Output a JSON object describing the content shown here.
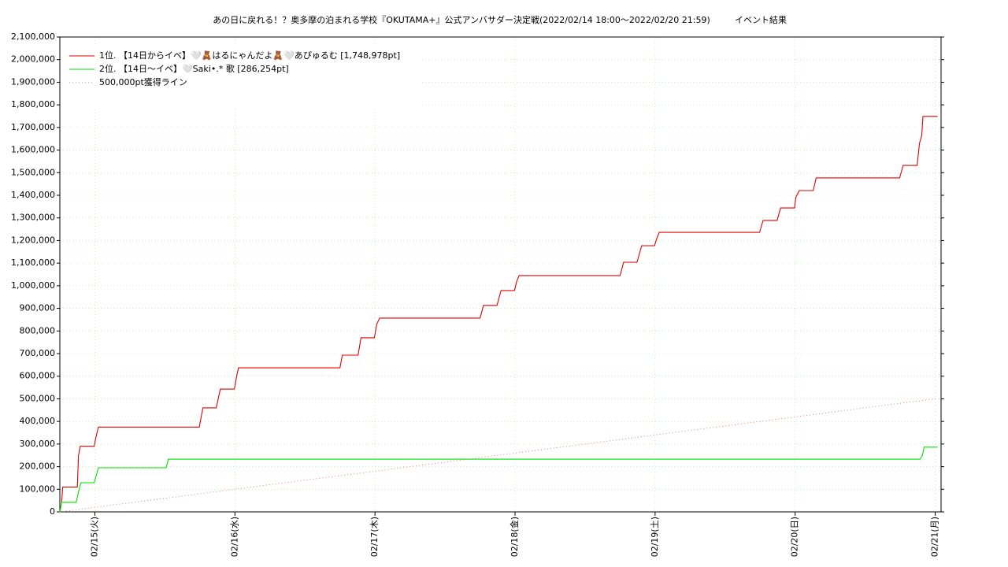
{
  "chart_data": {
    "type": "line",
    "title": "あの日に戻れる！？奥多摩の泊まれる学校『OKUTAMA+』公式アンバサダー決定戦(2022/02/14 18:00～2022/02/20 21:59)",
    "subtitle": "イベント結果",
    "xlim": [
      0,
      151
    ],
    "xticks": [
      {
        "value": 6,
        "label": "02/15(火)"
      },
      {
        "value": 30,
        "label": "02/16(水)"
      },
      {
        "value": 54,
        "label": "02/17(木)"
      },
      {
        "value": 78,
        "label": "02/18(金)"
      },
      {
        "value": 102,
        "label": "02/19(土)"
      },
      {
        "value": 126,
        "label": "02/20(日)"
      },
      {
        "value": 150,
        "label": "02/21(月)"
      }
    ],
    "ylim": [
      0,
      2100000
    ],
    "yticks": [
      0,
      {
        "value": 100000,
        "label": "100,000"
      },
      {
        "value": 200000,
        "label": "200,000"
      },
      {
        "value": 300000,
        "label": "300,000"
      },
      {
        "value": 400000,
        "label": "400,000"
      },
      {
        "value": 500000,
        "label": "500,000"
      },
      {
        "value": 600000,
        "label": "600,000"
      },
      {
        "value": 700000,
        "label": "700,000"
      },
      {
        "value": 800000,
        "label": "800,000"
      },
      {
        "value": 900000,
        "label": "900,000"
      },
      {
        "value": 1000000,
        "label": "1,000,000"
      },
      {
        "value": 1100000,
        "label": "1,100,000"
      },
      {
        "value": 1200000,
        "label": "1,200,000"
      },
      {
        "value": 1300000,
        "label": "1,300,000"
      },
      {
        "value": 1400000,
        "label": "1,400,000"
      },
      {
        "value": 1500000,
        "label": "1,500,000"
      },
      {
        "value": 1600000,
        "label": "1,600,000"
      },
      {
        "value": 1700000,
        "label": "1,700,000"
      },
      {
        "value": 1800000,
        "label": "1,800,000"
      },
      {
        "value": 1900000,
        "label": "1,900,000"
      },
      {
        "value": 2000000,
        "label": "2,000,000"
      },
      {
        "value": 2100000,
        "label": "2,100,000"
      }
    ],
    "grid": true,
    "legend": "upper-left",
    "series": [
      {
        "name": "1位. 【14日からイベ】🤍🧸はるにゃんだよ🧸🤍あぴゅるむ [1,748,978pt]",
        "color": "#e00000",
        "style": "solid",
        "x": [
          0,
          0.3,
          0.5,
          3.0,
          3.2,
          3.5,
          5.9,
          6.1,
          6.6,
          23.9,
          24.5,
          26.8,
          27.5,
          29.9,
          30.3,
          30.6,
          48.0,
          48.4,
          51.1,
          51.6,
          53.9,
          54.3,
          54.8,
          72.0,
          72.6,
          74.9,
          75.6,
          77.9,
          78.3,
          78.7,
          96.0,
          96.6,
          98.9,
          99.7,
          101.9,
          102.3,
          102.7,
          119.9,
          120.5,
          122.9,
          123.5,
          125.9,
          126.1,
          126.7,
          129.1,
          129.6,
          143.9,
          144.5,
          146.9,
          147.3,
          147.7,
          147.9,
          150.4
        ],
        "values": [
          0,
          40000,
          110000,
          110000,
          250000,
          290000,
          290000,
          320000,
          375000,
          375000,
          460000,
          460000,
          543000,
          543000,
          600000,
          637000,
          637000,
          693000,
          693000,
          770000,
          770000,
          830000,
          857000,
          857000,
          913000,
          913000,
          979000,
          979000,
          1020000,
          1045000,
          1045000,
          1104000,
          1104000,
          1177000,
          1177000,
          1210000,
          1236000,
          1236000,
          1289000,
          1289000,
          1344000,
          1344000,
          1390000,
          1421000,
          1421000,
          1477000,
          1477000,
          1532000,
          1532000,
          1630000,
          1665000,
          1748978,
          1748978
        ]
      },
      {
        "name": "2位. 【14日〜イベ】🤍Saki•.* 歌 [286,254pt]",
        "color": "#00e000",
        "style": "solid",
        "x": [
          0,
          0.3,
          2.8,
          3.4,
          3.6,
          5.9,
          6.6,
          18.2,
          18.6,
          147.4,
          147.8,
          148.1,
          150.4
        ],
        "values": [
          0,
          42000,
          42000,
          110000,
          129000,
          129000,
          195000,
          195000,
          233000,
          233000,
          250000,
          286254,
          286254
        ]
      },
      {
        "name": "500,000pt獲得ライン",
        "color": "#e08080",
        "style": "dotted",
        "x": [
          0,
          150
        ],
        "values": [
          0,
          500000
        ]
      }
    ]
  }
}
